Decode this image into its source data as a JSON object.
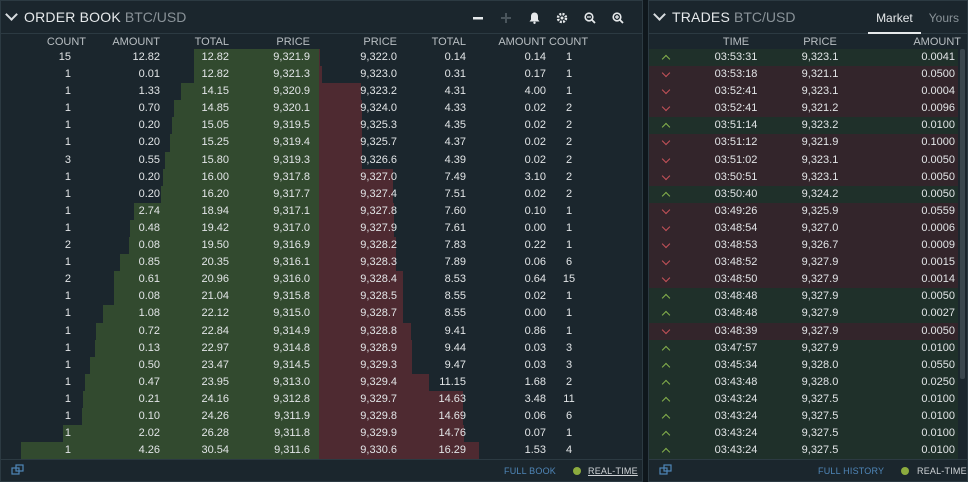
{
  "orderbook": {
    "title": "ORDER BOOK",
    "symbol": "BTC/USD",
    "bid_headers": [
      "COUNT",
      "AMOUNT",
      "TOTAL",
      "PRICE"
    ],
    "ask_headers": [
      "PRICE",
      "TOTAL",
      "AMOUNT",
      "COUNT"
    ],
    "bids": [
      [
        "15",
        "12.82",
        "12.82",
        "9,321.9"
      ],
      [
        "1",
        "0.01",
        "12.82",
        "9,321.3"
      ],
      [
        "1",
        "1.33",
        "14.15",
        "9,320.9"
      ],
      [
        "1",
        "0.70",
        "14.85",
        "9,320.1"
      ],
      [
        "1",
        "0.20",
        "15.05",
        "9,319.5"
      ],
      [
        "1",
        "0.20",
        "15.25",
        "9,319.4"
      ],
      [
        "3",
        "0.55",
        "15.80",
        "9,319.3"
      ],
      [
        "1",
        "0.20",
        "16.00",
        "9,317.8"
      ],
      [
        "1",
        "0.20",
        "16.20",
        "9,317.7"
      ],
      [
        "1",
        "2.74",
        "18.94",
        "9,317.1"
      ],
      [
        "1",
        "0.48",
        "19.42",
        "9,317.0"
      ],
      [
        "2",
        "0.08",
        "19.50",
        "9,316.9"
      ],
      [
        "1",
        "0.85",
        "20.35",
        "9,316.1"
      ],
      [
        "2",
        "0.61",
        "20.96",
        "9,316.0"
      ],
      [
        "1",
        "0.08",
        "21.04",
        "9,315.8"
      ],
      [
        "1",
        "1.08",
        "22.12",
        "9,315.0"
      ],
      [
        "1",
        "0.72",
        "22.84",
        "9,314.9"
      ],
      [
        "1",
        "0.13",
        "22.97",
        "9,314.8"
      ],
      [
        "1",
        "0.50",
        "23.47",
        "9,314.5"
      ],
      [
        "1",
        "0.47",
        "23.95",
        "9,313.0"
      ],
      [
        "1",
        "0.21",
        "24.16",
        "9,312.8"
      ],
      [
        "1",
        "0.10",
        "24.26",
        "9,311.9"
      ],
      [
        "1",
        "2.02",
        "26.28",
        "9,311.8"
      ],
      [
        "1",
        "4.26",
        "30.54",
        "9,311.6"
      ]
    ],
    "asks": [
      [
        "9,322.0",
        "0.14",
        "0.14",
        "1"
      ],
      [
        "9,323.0",
        "0.31",
        "0.17",
        "1"
      ],
      [
        "9,323.2",
        "4.31",
        "4.00",
        "1"
      ],
      [
        "9,324.0",
        "4.33",
        "0.02",
        "2"
      ],
      [
        "9,325.3",
        "4.35",
        "0.02",
        "2"
      ],
      [
        "9,325.7",
        "4.37",
        "0.02",
        "2"
      ],
      [
        "9,326.6",
        "4.39",
        "0.02",
        "2"
      ],
      [
        "9,327.0",
        "7.49",
        "3.10",
        "2"
      ],
      [
        "9,327.4",
        "7.51",
        "0.02",
        "2"
      ],
      [
        "9,327.8",
        "7.60",
        "0.10",
        "1"
      ],
      [
        "9,327.9",
        "7.61",
        "0.00",
        "1"
      ],
      [
        "9,328.2",
        "7.83",
        "0.22",
        "1"
      ],
      [
        "9,328.3",
        "7.89",
        "0.06",
        "6"
      ],
      [
        "9,328.4",
        "8.53",
        "0.64",
        "15"
      ],
      [
        "9,328.5",
        "8.55",
        "0.02",
        "1"
      ],
      [
        "9,328.7",
        "8.55",
        "0.00",
        "1"
      ],
      [
        "9,328.8",
        "9.41",
        "0.86",
        "1"
      ],
      [
        "9,328.9",
        "9.44",
        "0.03",
        "3"
      ],
      [
        "9,329.3",
        "9.47",
        "0.03",
        "3"
      ],
      [
        "9,329.4",
        "11.15",
        "1.68",
        "2"
      ],
      [
        "9,329.7",
        "14.63",
        "3.48",
        "11"
      ],
      [
        "9,329.8",
        "14.69",
        "0.06",
        "6"
      ],
      [
        "9,329.9",
        "14.76",
        "0.07",
        "1"
      ],
      [
        "9,330.6",
        "16.29",
        "1.53",
        "4"
      ]
    ],
    "footer": {
      "full_book": "FULL BOOK",
      "realtime": "REAL-TIME"
    }
  },
  "trades": {
    "title": "TRADES",
    "symbol": "BTC/USD",
    "tabs": [
      "Market",
      "Yours"
    ],
    "headers": [
      "TIME",
      "PRICE",
      "AMOUNT"
    ],
    "rows": [
      [
        "up",
        "03:53:31",
        "9,323.1",
        "0.0041"
      ],
      [
        "down",
        "03:53:18",
        "9,321.1",
        "0.0500"
      ],
      [
        "down",
        "03:52:41",
        "9,323.1",
        "0.0004"
      ],
      [
        "down",
        "03:52:41",
        "9,321.2",
        "0.0096"
      ],
      [
        "up",
        "03:51:14",
        "9,323.2",
        "0.0100"
      ],
      [
        "down",
        "03:51:12",
        "9,321.9",
        "0.1000"
      ],
      [
        "down",
        "03:51:02",
        "9,323.1",
        "0.0050"
      ],
      [
        "down",
        "03:50:51",
        "9,323.1",
        "0.0050"
      ],
      [
        "up",
        "03:50:40",
        "9,324.2",
        "0.0050"
      ],
      [
        "down",
        "03:49:26",
        "9,325.9",
        "0.0559"
      ],
      [
        "down",
        "03:48:54",
        "9,327.0",
        "0.0006"
      ],
      [
        "down",
        "03:48:53",
        "9,326.7",
        "0.0009"
      ],
      [
        "down",
        "03:48:52",
        "9,327.9",
        "0.0015"
      ],
      [
        "down",
        "03:48:50",
        "9,327.9",
        "0.0014"
      ],
      [
        "up",
        "03:48:48",
        "9,327.9",
        "0.0050"
      ],
      [
        "up",
        "03:48:48",
        "9,327.9",
        "0.0027"
      ],
      [
        "down",
        "03:48:39",
        "9,327.9",
        "0.0050"
      ],
      [
        "up",
        "03:47:57",
        "9,327.9",
        "0.0100"
      ],
      [
        "up",
        "03:45:34",
        "9,328.0",
        "0.0550"
      ],
      [
        "up",
        "03:43:48",
        "9,328.0",
        "0.0250"
      ],
      [
        "up",
        "03:43:24",
        "9,327.5",
        "0.0100"
      ],
      [
        "up",
        "03:43:24",
        "9,327.5",
        "0.0100"
      ],
      [
        "up",
        "03:43:24",
        "9,327.5",
        "0.0100"
      ],
      [
        "up",
        "03:43:24",
        "9,327.5",
        "0.0100"
      ]
    ],
    "footer": {
      "full_history": "FULL HISTORY",
      "realtime": "REAL-TIME"
    }
  },
  "colors": {
    "bid": "#86b14c",
    "ask": "#c6535a",
    "link": "#4f86b8",
    "live_dot": "#8cab3e"
  },
  "icons": [
    "minus-icon",
    "plus-icon",
    "bell-icon",
    "gear-icon",
    "zoom-out-icon",
    "zoom-in-icon",
    "expand-icon"
  ]
}
